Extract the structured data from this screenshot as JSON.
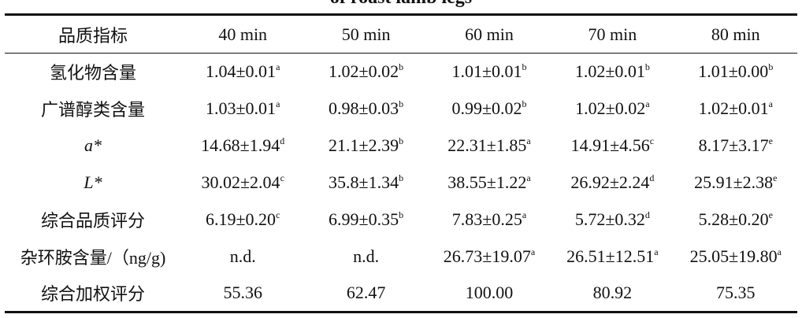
{
  "title": "of roast lamb legs",
  "table": {
    "header": [
      "品质指标",
      "40 min",
      "50 min",
      "60 min",
      "70 min",
      "80 min"
    ],
    "rows": [
      {
        "label": "氢化物含量",
        "cells": [
          {
            "text": "1.04±0.01",
            "sup": "a"
          },
          {
            "text": "1.02±0.02",
            "sup": "b"
          },
          {
            "text": "1.01±0.01",
            "sup": "b"
          },
          {
            "text": "1.02±0.01",
            "sup": "b"
          },
          {
            "text": "1.01±0.00",
            "sup": "b"
          }
        ]
      },
      {
        "label": "广谱醇类含量",
        "cells": [
          {
            "text": "1.03±0.01",
            "sup": "a"
          },
          {
            "text": "0.98±0.03",
            "sup": "b"
          },
          {
            "text": "0.99±0.02",
            "sup": "b"
          },
          {
            "text": "1.02±0.02",
            "sup": "a"
          },
          {
            "text": "1.02±0.01",
            "sup": "a"
          }
        ]
      },
      {
        "label": "a*",
        "italic": true,
        "cells": [
          {
            "text": "14.68±1.94",
            "sup": "d"
          },
          {
            "text": "21.1±2.39",
            "sup": "b"
          },
          {
            "text": "22.31±1.85",
            "sup": "a"
          },
          {
            "text": "14.91±4.56",
            "sup": "c"
          },
          {
            "text": "8.17±3.17",
            "sup": "e"
          }
        ]
      },
      {
        "label": "L*",
        "italic": true,
        "cells": [
          {
            "text": "30.02±2.04",
            "sup": "c"
          },
          {
            "text": "35.8±1.34",
            "sup": "b"
          },
          {
            "text": "38.55±1.22",
            "sup": "a"
          },
          {
            "text": "26.92±2.24",
            "sup": "d"
          },
          {
            "text": "25.91±2.38",
            "sup": "e"
          }
        ]
      },
      {
        "label": "综合品质评分",
        "cells": [
          {
            "text": "6.19±0.20",
            "sup": "c"
          },
          {
            "text": "6.99±0.35",
            "sup": "b"
          },
          {
            "text": "7.83±0.25",
            "sup": "a"
          },
          {
            "text": "5.72±0.32",
            "sup": "d"
          },
          {
            "text": "5.28±0.20",
            "sup": "e"
          }
        ]
      },
      {
        "label": "杂环胺含量/（ng/g)",
        "cells": [
          {
            "text": "n.d."
          },
          {
            "text": "n.d."
          },
          {
            "text": "26.73±19.07",
            "sup": "a"
          },
          {
            "text": "26.51±12.51",
            "sup": "a"
          },
          {
            "text": "25.05±19.80",
            "sup": "a"
          }
        ]
      },
      {
        "label": "综合加权评分",
        "cells": [
          {
            "text": "55.36"
          },
          {
            "text": "62.47"
          },
          {
            "text": "100.00"
          },
          {
            "text": "80.92"
          },
          {
            "text": "75.35"
          }
        ]
      }
    ]
  }
}
